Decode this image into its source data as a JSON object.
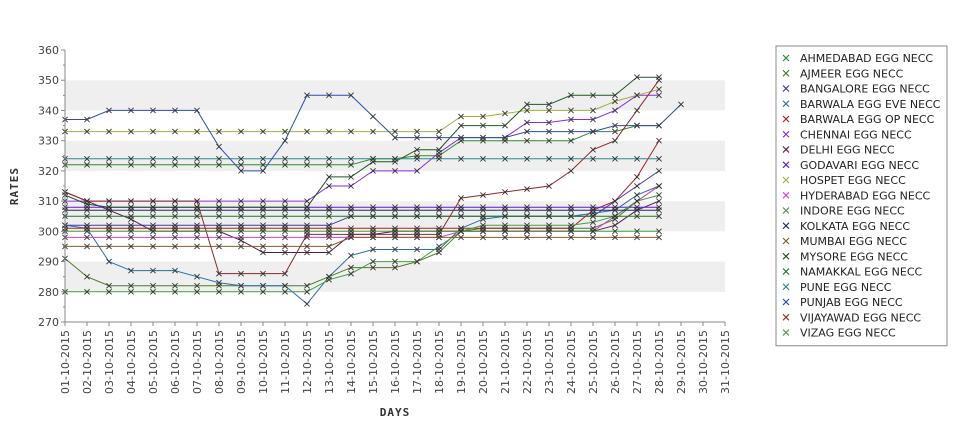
{
  "chart_data": {
    "type": "line",
    "xlabel": "DAYS",
    "ylabel": "RATES",
    "ylim": [
      270,
      360
    ],
    "yticks": [
      270,
      280,
      290,
      300,
      310,
      320,
      330,
      340,
      350,
      360
    ],
    "grid": "alternating horizontal bands",
    "legend_position": "right",
    "categories": [
      "01-10-2015",
      "02-10-2015",
      "03-10-2015",
      "04-10-2015",
      "05-10-2015",
      "06-10-2015",
      "07-10-2015",
      "08-10-2015",
      "09-10-2015",
      "10-10-2015",
      "11-10-2015",
      "12-10-2015",
      "13-10-2015",
      "14-10-2015",
      "15-10-2015",
      "16-10-2015",
      "17-10-2015",
      "18-10-2015",
      "19-10-2015",
      "20-10-2015",
      "21-10-2015",
      "22-10-2015",
      "23-10-2015",
      "24-10-2015",
      "25-10-2015",
      "26-10-2015",
      "27-10-2015",
      "28-10-2015",
      "29-10-2015",
      "30-10-2015",
      "31-10-2015"
    ],
    "series": [
      {
        "name": "AHMEDABAD EGG NECC",
        "color": "#2e8b2e",
        "values": [
          322,
          322,
          322,
          322,
          322,
          322,
          322,
          322,
          322,
          322,
          322,
          322,
          322,
          322,
          324,
          324,
          325,
          325,
          330,
          330,
          330,
          330,
          330,
          330,
          333,
          333,
          335,
          335,
          null,
          null,
          null
        ]
      },
      {
        "name": "AJMEER EGG NECC",
        "color": "#4f7a28",
        "values": [
          291,
          285,
          282,
          282,
          282,
          282,
          282,
          282,
          282,
          282,
          282,
          282,
          285,
          288,
          288,
          288,
          290,
          293,
          300,
          301,
          301,
          301,
          301,
          301,
          301,
          304,
          310,
          315,
          null,
          null,
          null
        ]
      },
      {
        "name": "BANGALORE EGG NECC",
        "color": "#3a3aa0",
        "values": [
          302,
          302,
          302,
          302,
          302,
          302,
          302,
          302,
          302,
          302,
          302,
          302,
          302,
          305,
          305,
          305,
          305,
          305,
          305,
          305,
          305,
          305,
          305,
          305,
          305,
          310,
          315,
          320,
          null,
          null,
          null
        ]
      },
      {
        "name": "BARWALA EGG EVE NECC",
        "color": "#2a6fa8",
        "values": [
          302,
          301,
          290,
          287,
          287,
          287,
          285,
          283,
          282,
          282,
          282,
          276,
          285,
          292,
          294,
          294,
          294,
          294,
          301,
          304,
          305,
          305,
          305,
          305,
          306,
          307,
          312,
          315,
          null,
          null,
          null
        ]
      },
      {
        "name": "BARWALA EGG OP NECC",
        "color": "#b02020",
        "values": [
          301,
          301,
          301,
          301,
          301,
          301,
          301,
          301,
          301,
          301,
          301,
          301,
          301,
          301,
          301,
          301,
          301,
          301,
          301,
          301,
          301,
          301,
          301,
          301,
          307,
          310,
          318,
          330,
          null,
          null,
          null
        ]
      },
      {
        "name": "CHENNAI EGG NECC",
        "color": "#8a2be2",
        "values": [
          310,
          310,
          310,
          310,
          310,
          310,
          310,
          310,
          310,
          310,
          310,
          310,
          315,
          315,
          320,
          320,
          320,
          326,
          331,
          331,
          331,
          336,
          336,
          337,
          337,
          340,
          345,
          345,
          null,
          null,
          null
        ]
      },
      {
        "name": "DELHI EGG NECC",
        "color": "#5a1a4a",
        "values": [
          313,
          310,
          307,
          304,
          300,
          300,
          300,
          300,
          297,
          293,
          293,
          293,
          293,
          299,
          299,
          300,
          300,
          300,
          300,
          300,
          300,
          300,
          300,
          300,
          300,
          302,
          307,
          310,
          null,
          null,
          null
        ]
      },
      {
        "name": "GODAVARI EGG NECC",
        "color": "#5a1ad0",
        "values": [
          308,
          308,
          308,
          308,
          308,
          308,
          308,
          308,
          308,
          308,
          308,
          308,
          308,
          308,
          308,
          308,
          308,
          308,
          308,
          308,
          308,
          308,
          308,
          308,
          308,
          308,
          308,
          308,
          null,
          null,
          null
        ]
      },
      {
        "name": "HOSPET EGG NECC",
        "color": "#a0b040",
        "values": [
          333,
          333,
          333,
          333,
          333,
          333,
          333,
          333,
          333,
          333,
          333,
          333,
          333,
          333,
          333,
          333,
          333,
          333,
          338,
          338,
          339,
          340,
          340,
          340,
          340,
          343,
          345,
          347,
          null,
          null,
          null
        ]
      },
      {
        "name": "HYDERABAD EGG NECC",
        "color": "#d040d0",
        "values": [
          298,
          298,
          298,
          298,
          298,
          298,
          298,
          298,
          298,
          298,
          298,
          298,
          298,
          298,
          298,
          298,
          298,
          298,
          300,
          300,
          300,
          300,
          300,
          300,
          300,
          305,
          310,
          315,
          null,
          null,
          null
        ]
      },
      {
        "name": "INDORE EGG NECC",
        "color": "#40a040",
        "values": [
          280,
          280,
          280,
          280,
          280,
          280,
          280,
          280,
          280,
          280,
          280,
          280,
          284,
          286,
          290,
          290,
          290,
          295,
          300,
          302,
          302,
          302,
          302,
          302,
          303,
          305,
          310,
          312,
          null,
          null,
          null
        ]
      },
      {
        "name": "KOLKATA EGG NECC",
        "color": "#202870",
        "values": [
          307,
          307,
          307,
          307,
          307,
          307,
          307,
          307,
          307,
          307,
          307,
          307,
          307,
          307,
          307,
          307,
          307,
          307,
          307,
          307,
          307,
          307,
          307,
          307,
          307,
          307,
          307,
          307,
          null,
          null,
          null
        ]
      },
      {
        "name": "MUMBAI EGG NECC",
        "color": "#8a5a2a",
        "values": [
          295,
          295,
          295,
          295,
          295,
          295,
          295,
          295,
          295,
          295,
          295,
          295,
          295,
          298,
          298,
          298,
          298,
          298,
          298,
          298,
          298,
          298,
          298,
          298,
          298,
          298,
          298,
          298,
          null,
          null,
          null
        ]
      },
      {
        "name": "MYSORE EGG NECC",
        "color": "#1a5a1a",
        "values": [
          312,
          309,
          308,
          308,
          308,
          308,
          308,
          308,
          308,
          308,
          308,
          308,
          318,
          318,
          323,
          323,
          327,
          327,
          335,
          335,
          335,
          342,
          342,
          345,
          345,
          345,
          351,
          351,
          null,
          null,
          null
        ]
      },
      {
        "name": "NAMAKKAL EGG NECC",
        "color": "#1a7a1a",
        "values": [
          305,
          305,
          305,
          305,
          305,
          305,
          305,
          305,
          305,
          305,
          305,
          305,
          305,
          305,
          305,
          305,
          305,
          305,
          305,
          305,
          305,
          305,
          305,
          305,
          305,
          305,
          305,
          305,
          null,
          null,
          null
        ]
      },
      {
        "name": "PUNE EGG NECC",
        "color": "#2a8a8a",
        "values": [
          324,
          324,
          324,
          324,
          324,
          324,
          324,
          324,
          324,
          324,
          324,
          324,
          324,
          324,
          324,
          324,
          324,
          324,
          324,
          324,
          324,
          324,
          324,
          324,
          324,
          324,
          324,
          324,
          null,
          null,
          null
        ]
      },
      {
        "name": "PUNJAB EGG NECC",
        "color": "#2a4ab0",
        "values": [
          337,
          337,
          340,
          340,
          340,
          340,
          340,
          328,
          320,
          320,
          330,
          345,
          345,
          345,
          338,
          331,
          331,
          331,
          331,
          331,
          331,
          333,
          333,
          333,
          333,
          335,
          335,
          335,
          342,
          null,
          null
        ]
      },
      {
        "name": "VIJAYAWAD EGG NECC",
        "color": "#8a2a2a",
        "values": [
          313,
          310,
          310,
          310,
          310,
          310,
          310,
          286,
          286,
          286,
          286,
          299,
          299,
          299,
          299,
          299,
          299,
          299,
          311,
          312,
          313,
          314,
          315,
          320,
          327,
          330,
          340,
          350,
          null,
          null,
          null
        ]
      },
      {
        "name": "VIZAG EGG NECC",
        "color": "#3aa03a",
        "values": [
          300,
          300,
          300,
          300,
          300,
          300,
          300,
          300,
          300,
          300,
          300,
          300,
          300,
          300,
          300,
          300,
          300,
          300,
          300,
          300,
          300,
          300,
          300,
          300,
          300,
          300,
          300,
          300,
          null,
          null,
          null
        ]
      }
    ]
  }
}
